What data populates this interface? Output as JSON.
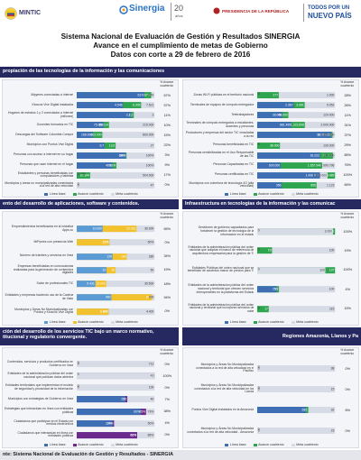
{
  "header": {
    "logos": [
      "MINTIC",
      "Sinergia",
      "20",
      "años",
      "PRESIDENCIA DE LA REPÚBLICA",
      "TODOS POR UN",
      "NUEVO PAÍS"
    ],
    "title": [
      "Sistema Nacional de Evaluación de Gestión y Resultados SINERGIA",
      "Avance en el cumplimiento de metas de Gobierno",
      "Datos con corte a 29 de febrero de 2016"
    ]
  },
  "sections": [
    "propiación de las tecnologías de la información y las comunicaciones",
    "ento del desarrollo de aplicaciones, software y contenidos.",
    "Infraestructura en tecnologías de la información y las comunicac",
    "ción del desarrollo de los servicios TIC bajo un marco normativo,",
    "titucional y regulatorio convergente.",
    "Regiones Amazonía, Llanos y Pa"
  ],
  "source": "nte: Sistema Nacional de Evaluación de Gestión y Resultados - SINERGIA",
  "chart_data": [
    {
      "type": "bar",
      "pct_header": "% Avance cuatrienio",
      "categories": [
        "Mipymes conectadas a Internet",
        "Kioscos Vive Digital instalados",
        "Hogares de estratos 1 y 2 conectados a Internet (millones)",
        "Docentes formados en TIC",
        "Descargas del Software Colombia Compra",
        "Municipios con Puntos Vive Digital",
        "Personas con acceso a Internet en su hogar",
        "Personas que usan Internet en el hogar",
        "Estudiantes y personas beneficiadas con computadores y tabletas",
        "Municipios y áreas no municipalizadas conectados a la red de alta velocidad"
      ],
      "series": [
        {
          "name": "Línea base",
          "color": "#3e6fb4",
          "values": [
            61,
            4546,
            2.1,
            75000,
            168000,
            9.7,
            63,
            46,
            2000,
            0
          ],
          "value_labels": [
            "61%",
            "4.546",
            "2,1",
            "75.000",
            "168.000",
            "9,7",
            "63%",
            "46%",
            "2.000",
            "0"
          ]
        },
        {
          "name": "Avance cuatrienio",
          "color": "#2ea54f",
          "values": [
            67,
            6305,
            2.2,
            89214,
            263000,
            13.5,
            64,
            51,
            87344,
            0
          ],
          "value_labels": [
            "67%",
            "6.305",
            "2,2",
            "89.214",
            "263.000",
            "13,5",
            "64%",
            "51%",
            "87.344",
            "0"
          ]
        },
        {
          "name": "Meta cuatrienio",
          "color": "#d6dbe6",
          "values": [
            70,
            7621,
            3,
            215000,
            800000,
            27,
            100,
            100,
            504000,
            47
          ],
          "value_labels": [
            "70%",
            "7.621",
            "3",
            "215.000",
            "800.000",
            "27",
            "100%",
            "100%",
            "504.000",
            "47"
          ]
        }
      ],
      "pct_labels": [
        "67%",
        "57%",
        "11%",
        "10%",
        "15%",
        "22%",
        "3%",
        "9%",
        "17%",
        "0%"
      ]
    },
    {
      "type": "bar",
      "pct_header": "% Avance cuatrienio",
      "categories": [
        "Zonas Wi-Fi públicas en el territorio nacional",
        "Terminales de equipos de cómputo entregados",
        "Teletrabajadores",
        "Terminales de cómputo entregados a estudiantes, docentes y personas",
        "Productores y empresas del sector TIC vinculadas a la red",
        "Personas beneficiadas en TIC",
        "Personas sensibilizadas en el Uso Responsable de las TIC",
        "Personas Capacitadas en TIC",
        "Personas certificadas en TIC",
        "Municipios con cobertura de tecnología 4G (alta velocidad)"
      ],
      "series": [
        {
          "name": "Línea base",
          "color": "#3e6fb4",
          "values": [
            0,
            2367,
            39000,
            881495,
            8211311,
            0,
            81022,
            600000,
            1430000,
            356
          ],
          "value_labels": [
            "0",
            "2.367",
            "39.000",
            "881.495",
            "8.211.311",
            "0",
            "81.022",
            "600.000",
            "1.430.000",
            "356"
          ]
        },
        {
          "name": "Avance cuatrienio",
          "color": "#2ea54f",
          "values": [
            277,
            3081,
            48000,
            1223896,
            8373638,
            38000,
            97212,
            1657940,
            1773489,
            856
          ],
          "value_labels": [
            "277",
            "3.081",
            "48.000",
            "1.223.896",
            "8.373.638",
            "38.000",
            "97.212",
            "1.657.940",
            "1.773.489",
            "856"
          ]
        },
        {
          "name": "Meta cuatrienio",
          "color": "#d6dbe6",
          "values": [
            1000,
            5052,
            120000,
            2000000,
            8650000,
            130000,
            100000,
            1990796,
            1600000,
            1123
          ],
          "value_labels": [
            "1.000",
            "5.052",
            "120.000",
            "2.000.000",
            "8.650.000",
            "130.000",
            "100.000",
            "1.990.796",
            "1.600.000",
            "1.123"
          ]
        }
      ],
      "pct_labels": [
        "28%",
        "26%",
        "11%",
        "31%",
        "37%",
        "29%",
        "85%",
        "76%",
        "100%",
        "65%"
      ]
    },
    {
      "type": "bar",
      "pct_header": "% Avance cuatrienio",
      "categories": [
        "Emprendimientos beneficiados en la iniciativa Apps.co",
        "MiPymes con presencia Web",
        "Número de trámites y servicios en línea",
        "Empresas beneficiadas en convocatorias realizadas para la generación de contenidos digitales",
        "Salón de profesionales TIC",
        "Entidades y empresas haciendo uso de la Cadena de Valor",
        "Municipios y Áreas No Municipalizadas con Puntos y Kioscos Vive Digital"
      ],
      "series": [
        {
          "name": "Línea base",
          "color": "#5b9bd5",
          "values": [
            10000,
            21,
            129,
            23,
            9431,
            400,
            1800
          ],
          "value_labels": [
            "10.000",
            "21%",
            "129",
            "23",
            "9.431",
            "400",
            "1.800"
          ]
        },
        {
          "name": "Avance cuatrienio",
          "color": "#f2c12e",
          "values": [
            23031,
            21,
            180,
            30,
            15000,
            870,
            1800
          ],
          "value_labels": [
            "23.031",
            "21%",
            "180",
            "30",
            "15.000",
            "870",
            "1.800"
          ]
        },
        {
          "name": "Meta cuatrienio",
          "color": "#d6dbe6",
          "values": [
            30000,
            50,
            280,
            60,
            39500,
            900,
            4400
          ],
          "value_labels": [
            "30.000",
            "50%",
            "280",
            "60",
            "39.500",
            "900",
            "4.400"
          ]
        }
      ],
      "pct_labels": [
        "65%",
        "0%",
        "34%",
        "19%",
        "18%",
        "94%",
        "0%"
      ]
    },
    {
      "type": "bar",
      "pct_header": "% Avance cuatrienio",
      "categories": [
        "Servidores de gobierno capacitados para fortalecer la gestión de tecnología de la información en el estado",
        "Entidades de la administración pública del orden nacional que adoptan el marco de referencia de arquitectura empresarial para la gestión de TI",
        "Entidades Públicas del orden nacional que se benefician de acuerdos marco de precios para TI",
        "Entidades de la administración pública del orden nacional y territorial que ofrecen servicios interoperables en la plataforma del Estado",
        "Entidades de la administración pública del orden nacional y territorial que incorporan servicios de nube"
      ],
      "series": [
        {
          "name": "Línea base",
          "color": "#3e6fb4",
          "values": [
            0,
            0,
            0,
            25,
            0
          ],
          "value_labels": [
            "0",
            "0",
            "0",
            "25",
            "0"
          ]
        },
        {
          "name": "Avance cuatrienio",
          "color": "#2ea54f",
          "values": [
            3081,
            19,
            137,
            28,
            17
          ],
          "value_labels": [
            "3.081",
            "19",
            "137",
            "28",
            "17"
          ]
        },
        {
          "name": "Meta cuatrienio",
          "color": "#d6dbe6",
          "values": [
            3000,
            100,
            120,
            100,
            115
          ],
          "value_labels": [
            "3.000",
            "100",
            "120",
            "100",
            "115"
          ]
        }
      ],
      "pct_labels": [
        "100%",
        "19%",
        "100%",
        "4%",
        "15%"
      ]
    },
    {
      "type": "bar",
      "pct_header": "% Avance cuatrienio",
      "categories": [
        "Contenidos, servicios y productos certificados en Gobierno en línea",
        "Entidades de la administración pública del orden nacional que publican datos abiertos",
        "Entidades territoriales que implementan el modelo de seguridad y privacidad de la información",
        "Municipios con estrategias de Gobierno en línea",
        "Estrategias que interactúan en línea con entidades públicas",
        "Ciudadanos que participan en el Estado por medios electrónicos",
        "Ciudadanos que interactúan en línea con entidades públicas"
      ],
      "series": [
        {
          "name": "Línea base",
          "color": "#3e6fb4",
          "values": [
            0,
            0,
            0,
            25,
            60,
            23,
            66
          ],
          "value_labels": [
            "0",
            "0",
            "0",
            "25",
            "60%",
            "23%",
            "66%"
          ]
        },
        {
          "name": "Avance cuatrienio",
          "color": "#6b2a8c",
          "values": [
            0,
            43,
            0,
            26,
            65,
            24,
            66
          ],
          "value_labels": [
            "0",
            "43",
            "0",
            "26",
            "65%",
            "24%",
            "66%"
          ]
        },
        {
          "name": "Meta cuatrienio",
          "color": "#d6dbe6",
          "values": [
            712,
            43,
            100,
            40,
            73,
            50,
            85
          ],
          "value_labels": [
            "712",
            "43",
            "100",
            "40",
            "73%",
            "50%",
            "85%"
          ]
        }
      ],
      "pct_labels": [
        "0%",
        "100%",
        "0%",
        "7%",
        "38%",
        "4%",
        "0%"
      ]
    },
    {
      "type": "bar",
      "pct_header": "% Avance cuatrienio",
      "categories": [
        "Municipios y Áreas No Municipalizadas conectados a la red de alta velocidad en el Pacífico",
        "Municipios y Áreas No Municipalizadas conectados a la red de alta velocidad en los Llanos",
        "Puntos Vive Digital instalados en la Amazonía",
        "Municipios y Áreas No Municipalizadas conectados a la red de alta velocidad - Amazonía"
      ],
      "series": [
        {
          "name": "Línea base",
          "color": "#3e6fb4",
          "values": [
            0,
            0,
            20,
            0
          ],
          "value_labels": [
            "0",
            "0",
            "20",
            "0"
          ]
        },
        {
          "name": "Avance cuatrienio",
          "color": "#2ea54f",
          "values": [
            0,
            0,
            21,
            0
          ],
          "value_labels": [
            "0",
            "0",
            "21",
            "0"
          ]
        },
        {
          "name": "Meta cuatrienio",
          "color": "#d6dbe6",
          "values": [
            38,
            15,
            32,
            23
          ],
          "value_labels": [
            "38",
            "15",
            "32",
            "23"
          ]
        }
      ],
      "pct_labels": [
        "0%",
        "0%",
        "8%",
        "0%"
      ]
    }
  ]
}
